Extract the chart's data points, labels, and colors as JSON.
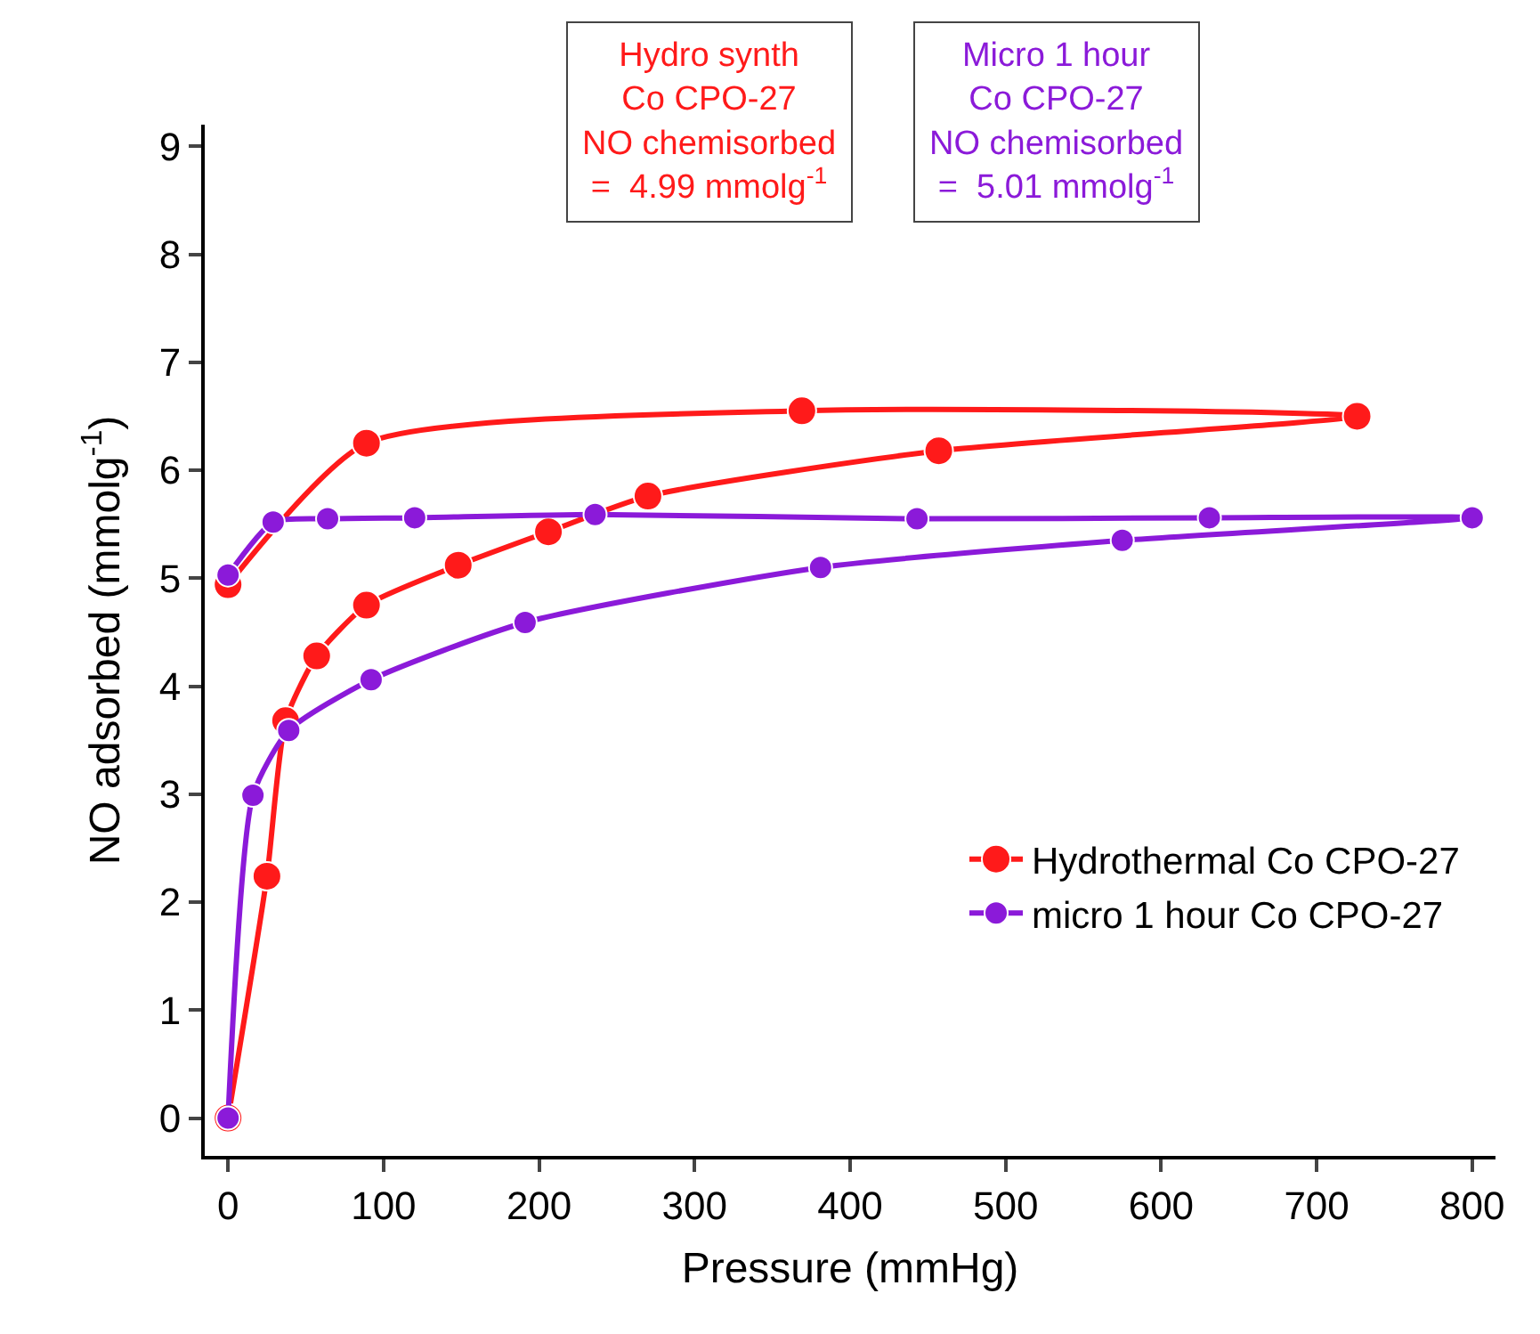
{
  "chart_data": {
    "type": "line",
    "xlabel": "Pressure (mmHg)",
    "ylabel": "NO adsorbed (mmolg$^{-1}$)",
    "xlim": [
      -15,
      815
    ],
    "xticks": [
      0,
      100,
      200,
      300,
      400,
      500,
      600,
      700,
      800
    ],
    "ylim": [
      -0.35,
      9.2
    ],
    "yticks": [
      0,
      1,
      2,
      3,
      4,
      5,
      6,
      7,
      8,
      9
    ],
    "legend": "bottom right",
    "marker": "circle",
    "line_style": "solid",
    "series": [
      {
        "name": "Hydrothermal Co CPO-27",
        "color": "#ff1a1a",
        "x": [
          0,
          25,
          37,
          57,
          89,
          148,
          206,
          270,
          457,
          726,
          369,
          89,
          0
        ],
        "values": [
          0,
          2.24,
          3.68,
          4.28,
          4.75,
          5.12,
          5.43,
          5.76,
          6.18,
          6.5,
          6.55,
          6.25,
          4.94
        ]
      },
      {
        "name": "micro 1 hour Co CPO-27",
        "color": "#8b1ad9",
        "x": [
          0,
          16,
          39,
          92,
          191,
          381,
          575,
          800,
          631,
          443,
          236,
          120,
          64,
          29,
          0
        ],
        "values": [
          0,
          2.99,
          3.59,
          4.06,
          4.59,
          5.1,
          5.35,
          5.56,
          5.56,
          5.55,
          5.59,
          5.56,
          5.55,
          5.52,
          5.03
        ]
      }
    ],
    "annotations": [
      "Hydro synth\nCo CPO-27\nNO chemisorbed\n=  4.99 mmolg$^{-1}$",
      "Micro 1 hour\nCo CPO-27\nNO chemisorbed\n=  5.01 mmolg$^{-1}$"
    ]
  }
}
